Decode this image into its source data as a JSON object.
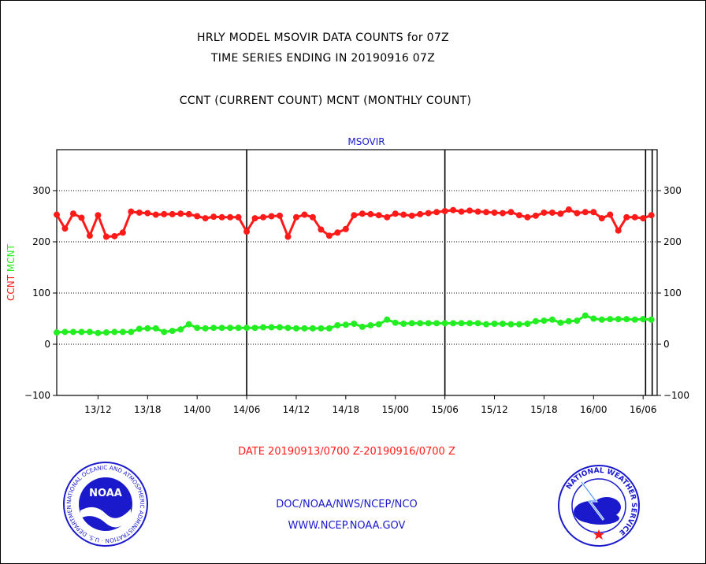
{
  "header": {
    "line1": "HRLY MODEL MSOVIR DATA COUNTS for 07Z",
    "line2": "TIME SERIES ENDING IN 20190916 07Z",
    "line3": "CCNT (CURRENT COUNT) MCNT (MONTHLY COUNT)"
  },
  "footer": {
    "date_range": "DATE 20190913/0700 Z-20190916/0700 Z",
    "org": "DOC/NOAA/NWS/NCEP/NCO",
    "website": "WWW.NCEP.NOAA.GOV"
  },
  "logos": {
    "noaa_text": "NOAA",
    "noaa_ring_text": "NATIONAL OCEANIC AND ATMOSPHERIC ADMINISTRATION · U.S. DEPARTMENT OF COMMERCE ·",
    "nws_ring_text": "NATIONAL WEATHER SERVICE"
  },
  "colors": {
    "ccnt": "#ff1a1a",
    "mcnt": "#22ee22",
    "axis": "#000000",
    "blue_text": "#1a1acc"
  },
  "chart_data": {
    "type": "line",
    "title": "MSOVIR",
    "ylabel_parts": [
      {
        "text": "CCNT",
        "color": "#ff1a1a"
      },
      {
        "text": "MCNT",
        "color": "#22ee22"
      }
    ],
    "ylim": [
      -100,
      380
    ],
    "yticks": [
      -100,
      0,
      100,
      200,
      300
    ],
    "y_gridlines": [
      0,
      100,
      200,
      300
    ],
    "xlim_hours": [
      0,
      72.7
    ],
    "xticks": [
      {
        "label": "13/12",
        "hour": 5
      },
      {
        "label": "13/18",
        "hour": 11
      },
      {
        "label": "14/00",
        "hour": 17
      },
      {
        "label": "14/06",
        "hour": 23
      },
      {
        "label": "14/12",
        "hour": 29
      },
      {
        "label": "14/18",
        "hour": 35
      },
      {
        "label": "15/00",
        "hour": 41
      },
      {
        "label": "15/06",
        "hour": 47
      },
      {
        "label": "15/12",
        "hour": 53
      },
      {
        "label": "15/18",
        "hour": 59
      },
      {
        "label": "16/00",
        "hour": 65
      },
      {
        "label": "16/06",
        "hour": 71
      }
    ],
    "vertical_lines_hours": [
      23,
      47,
      71.3,
      72.1
    ],
    "x_start": "2019-09-13 07Z",
    "x_step_hours": 1,
    "legend": "none",
    "grid": "horizontal dotted",
    "series": [
      {
        "name": "CCNT",
        "color": "#ff1a1a",
        "values": [
          253,
          226,
          255,
          247,
          212,
          252,
          210,
          211,
          218,
          259,
          257,
          256,
          253,
          254,
          254,
          255,
          254,
          250,
          246,
          249,
          248,
          248,
          248,
          220,
          246,
          248,
          250,
          251,
          210,
          248,
          253,
          248,
          224,
          212,
          218,
          225,
          252,
          255,
          254,
          252,
          248,
          255,
          253,
          251,
          254,
          256,
          258,
          260,
          262,
          259,
          261,
          259,
          258,
          257,
          256,
          258,
          252,
          248,
          251,
          257,
          257,
          255,
          263,
          256,
          258,
          258,
          246,
          253,
          222,
          248,
          248,
          246,
          252
        ]
      },
      {
        "name": "MCNT",
        "color": "#22ee22",
        "values": [
          23,
          24,
          24,
          24,
          24,
          22,
          23,
          24,
          24,
          24,
          30,
          31,
          31,
          24,
          26,
          29,
          39,
          32,
          31,
          32,
          32,
          32,
          32,
          32,
          32,
          33,
          33,
          33,
          32,
          31,
          31,
          31,
          31,
          31,
          37,
          38,
          40,
          34,
          37,
          39,
          48,
          42,
          40,
          41,
          41,
          41,
          41,
          41,
          41,
          41,
          41,
          41,
          39,
          40,
          40,
          39,
          39,
          40,
          45,
          46,
          48,
          42,
          45,
          46,
          56,
          50,
          48,
          49,
          49,
          49,
          48,
          49,
          48
        ]
      }
    ]
  }
}
